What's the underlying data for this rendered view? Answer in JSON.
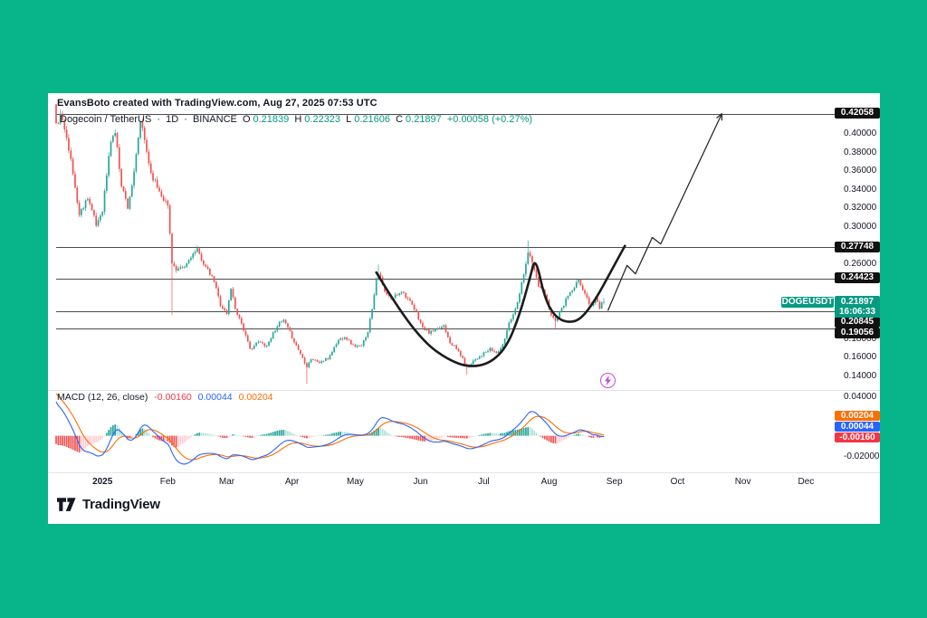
{
  "page": {
    "background": "#08B489",
    "panel_bg": "#ffffff"
  },
  "attribution": "EvansBoto created with TradingView.com, Aug 27, 2025 07:53 UTC",
  "symbol_bar": {
    "pair": "Dogecoin / TetherUS",
    "sep1": "·",
    "interval": "1D",
    "sep2": "·",
    "exchange": "BINANCE",
    "ohlc": [
      {
        "label": "O",
        "value": "0.21839"
      },
      {
        "label": "H",
        "value": "0.22323"
      },
      {
        "label": "L",
        "value": "0.21606"
      },
      {
        "label": "C",
        "value": "0.21897"
      }
    ],
    "change": "+0.00058 (+0.27%)"
  },
  "logo": {
    "wordmark": "TradingView"
  },
  "chart_data": {
    "type": "candlestick",
    "symbol": "DOGEUSDT",
    "exchange": "BINANCE",
    "timeframe": "1D",
    "window_start_date": "2024-12-10",
    "window_end_date": "2025-08-27",
    "colors": {
      "up": "#26A69A",
      "down": "#EF5350",
      "macd_line": "#2962FF",
      "signal_line": "#FF6D00",
      "hist_grow_above": "#26A69A",
      "hist_fall_above": "#B2DFDB",
      "hist_grow_below": "#FFCDD2",
      "hist_fall_below": "#EF5350",
      "level_line": "#4a4c52",
      "accent": "#089981"
    },
    "x_months": [
      {
        "label": "2025",
        "day": 22,
        "bold": true
      },
      {
        "label": "Feb",
        "day": 53
      },
      {
        "label": "Mar",
        "day": 81
      },
      {
        "label": "Apr",
        "day": 112
      },
      {
        "label": "May",
        "day": 142
      },
      {
        "label": "Jun",
        "day": 173
      },
      {
        "label": "Jul",
        "day": 203
      },
      {
        "label": "Aug",
        "day": 234
      },
      {
        "label": "Sep",
        "day": 265
      },
      {
        "label": "Oct",
        "day": 295
      },
      {
        "label": "Nov",
        "day": 326
      },
      {
        "label": "Dec",
        "day": 356
      }
    ],
    "y_ticks": [
      {
        "label": "0.40000",
        "value": 0.4,
        "pane": "main"
      },
      {
        "label": "0.38000",
        "value": 0.38,
        "pane": "main"
      },
      {
        "label": "0.36000",
        "value": 0.36,
        "pane": "main"
      },
      {
        "label": "0.34000",
        "value": 0.34,
        "pane": "main"
      },
      {
        "label": "0.32000",
        "value": 0.32,
        "pane": "main"
      },
      {
        "label": "0.30000",
        "value": 0.3,
        "pane": "main"
      },
      {
        "label": "0.26000",
        "value": 0.26,
        "pane": "main"
      },
      {
        "label": "0.18000",
        "value": 0.18,
        "pane": "main"
      },
      {
        "label": "0.16000",
        "value": 0.16,
        "pane": "main"
      },
      {
        "label": "0.14000",
        "value": 0.14,
        "pane": "main"
      },
      {
        "label": "0.04000",
        "value": 0.04,
        "pane": "macd"
      },
      {
        "label": "-0.02000",
        "value": -0.02,
        "pane": "macd"
      }
    ],
    "price_levels": [
      {
        "label": "0.42058",
        "value": 0.42058
      },
      {
        "label": "0.27748",
        "value": 0.27748
      },
      {
        "label": "0.24423",
        "value": 0.24423
      },
      {
        "label": "0.20845",
        "value": 0.20845
      },
      {
        "label": "0.19056",
        "value": 0.19056
      }
    ],
    "last_price": "0.21897",
    "countdown": "16:06:33",
    "last_candle": [
      0.21839,
      0.22323,
      0.21606,
      0.21897
    ],
    "prehistory_anchors": [
      [
        -40,
        0.158
      ],
      [
        -32,
        0.19
      ],
      [
        -24,
        0.36
      ],
      [
        -16,
        0.405
      ],
      [
        -8,
        0.425
      ],
      [
        -3,
        0.45
      ],
      [
        -1,
        0.43
      ]
    ],
    "close_anchors": [
      [
        0,
        0.408
      ],
      [
        2,
        0.418
      ],
      [
        5,
        0.398
      ],
      [
        8,
        0.356
      ],
      [
        11,
        0.312
      ],
      [
        15,
        0.332
      ],
      [
        19,
        0.301
      ],
      [
        22,
        0.318
      ],
      [
        26,
        0.392
      ],
      [
        28,
        0.401
      ],
      [
        31,
        0.345
      ],
      [
        34,
        0.321
      ],
      [
        37,
        0.356
      ],
      [
        40,
        0.413
      ],
      [
        42,
        0.392
      ],
      [
        45,
        0.357
      ],
      [
        49,
        0.338
      ],
      [
        53,
        0.322
      ],
      [
        55,
        0.262
      ],
      [
        57,
        0.252
      ],
      [
        61,
        0.256
      ],
      [
        64,
        0.268
      ],
      [
        67,
        0.274
      ],
      [
        71,
        0.256
      ],
      [
        75,
        0.241
      ],
      [
        78,
        0.216
      ],
      [
        81,
        0.206
      ],
      [
        83,
        0.234
      ],
      [
        85,
        0.212
      ],
      [
        88,
        0.196
      ],
      [
        92,
        0.168
      ],
      [
        96,
        0.176
      ],
      [
        100,
        0.172
      ],
      [
        105,
        0.194
      ],
      [
        108,
        0.199
      ],
      [
        111,
        0.186
      ],
      [
        114,
        0.172
      ],
      [
        119,
        0.15
      ],
      [
        121,
        0.158
      ],
      [
        125,
        0.154
      ],
      [
        129,
        0.158
      ],
      [
        134,
        0.178
      ],
      [
        137,
        0.182
      ],
      [
        141,
        0.172
      ],
      [
        145,
        0.171
      ],
      [
        148,
        0.188
      ],
      [
        150,
        0.212
      ],
      [
        152,
        0.244
      ],
      [
        153,
        0.251
      ],
      [
        156,
        0.229
      ],
      [
        159,
        0.222
      ],
      [
        164,
        0.231
      ],
      [
        167,
        0.222
      ],
      [
        171,
        0.207
      ],
      [
        174,
        0.191
      ],
      [
        177,
        0.186
      ],
      [
        181,
        0.189
      ],
      [
        184,
        0.194
      ],
      [
        187,
        0.176
      ],
      [
        191,
        0.166
      ],
      [
        195,
        0.149
      ],
      [
        198,
        0.156
      ],
      [
        202,
        0.162
      ],
      [
        206,
        0.168
      ],
      [
        209,
        0.164
      ],
      [
        212,
        0.172
      ],
      [
        215,
        0.197
      ],
      [
        218,
        0.211
      ],
      [
        221,
        0.239
      ],
      [
        224,
        0.272
      ],
      [
        226,
        0.261
      ],
      [
        229,
        0.236
      ],
      [
        232,
        0.227
      ],
      [
        235,
        0.206
      ],
      [
        237,
        0.198
      ],
      [
        240,
        0.211
      ],
      [
        243,
        0.226
      ],
      [
        246,
        0.233
      ],
      [
        248,
        0.243
      ],
      [
        251,
        0.227
      ],
      [
        254,
        0.214
      ],
      [
        256,
        0.224
      ],
      [
        258,
        0.212
      ],
      [
        260,
        0.219
      ]
    ],
    "wick_events": [
      [
        224,
        "high",
        0.285
      ],
      [
        153,
        "high",
        0.259
      ],
      [
        119,
        "low",
        0.131
      ],
      [
        55,
        "low",
        0.205
      ],
      [
        195,
        "low",
        0.141
      ],
      [
        237,
        "low",
        0.1905
      ]
    ],
    "annotations": {
      "cup_handle_path": [
        [
          152,
          0.2505
        ],
        [
          162,
          0.213
        ],
        [
          175,
          0.175
        ],
        [
          186,
          0.157
        ],
        [
          196,
          0.1487
        ],
        [
          206,
          0.153
        ],
        [
          214,
          0.171
        ],
        [
          220,
          0.205
        ],
        [
          225,
          0.245
        ],
        [
          227.5,
          0.268
        ],
        [
          232,
          0.222
        ],
        [
          237,
          0.2025
        ],
        [
          243,
          0.1965
        ],
        [
          249,
          0.2
        ],
        [
          256,
          0.221
        ],
        [
          263,
          0.25
        ],
        [
          270,
          0.279
        ]
      ],
      "projection_arrow": [
        [
          262,
          0.21
        ],
        [
          271,
          0.258
        ],
        [
          275,
          0.249
        ],
        [
          283,
          0.288
        ],
        [
          287,
          0.281
        ],
        [
          316,
          0.4206
        ]
      ],
      "lightning_marker": {
        "day": 262,
        "price": 0.135
      }
    },
    "macd": {
      "label": "MACD (12, 26, close)",
      "fast": 12,
      "slow": 26,
      "signal": 9,
      "histogram_value": "-0.00160",
      "macd_value": "0.00044",
      "signal_value": "0.00204",
      "badge_numeric": {
        "hist": -0.0016,
        "macd": 0.00044,
        "signal": 0.00204
      }
    }
  }
}
